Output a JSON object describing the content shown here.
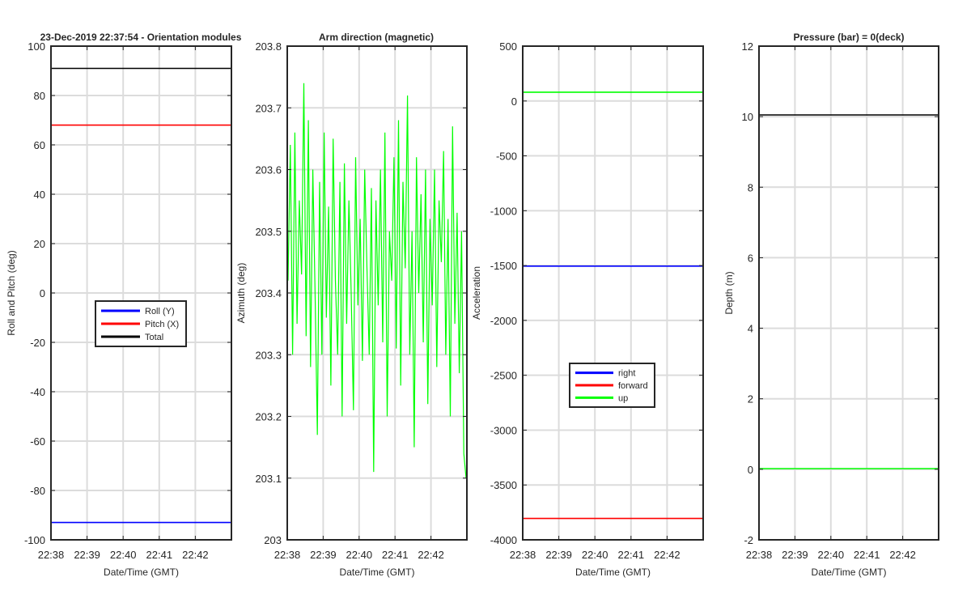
{
  "chart_data": [
    {
      "type": "line",
      "title": "23-Dec-2019 22:37:54 - Orientation modules",
      "xlabel": "Date/Time (GMT)",
      "ylabel": "Roll and Pitch (deg)",
      "xlim": [
        "22:38",
        "22:43"
      ],
      "xticks": [
        "22:38",
        "22:39",
        "22:40",
        "22:41",
        "22:42"
      ],
      "ylim": [
        -100,
        100
      ],
      "yticks": [
        -100,
        -80,
        -60,
        -40,
        -20,
        0,
        20,
        40,
        60,
        80,
        100
      ],
      "grid": true,
      "legend": "center",
      "series": [
        {
          "name": "Roll (Y)",
          "color": "#0000ff",
          "values": [
            -93,
            -93
          ]
        },
        {
          "name": "Pitch (X)",
          "color": "#ff0000",
          "values": [
            68,
            68
          ]
        },
        {
          "name": "Total",
          "color": "#000000",
          "values": [
            91,
            91
          ]
        }
      ]
    },
    {
      "type": "line",
      "title": "Arm direction (magnetic)",
      "xlabel": "Date/Time (GMT)",
      "ylabel": "Azimuth (deg)",
      "xlim": [
        "22:38",
        "22:43"
      ],
      "xticks": [
        "22:38",
        "22:39",
        "22:40",
        "22:41",
        "22:42"
      ],
      "ylim": [
        203,
        203.8
      ],
      "yticks": [
        203,
        203.1,
        203.2,
        203.3,
        203.4,
        203.5,
        203.6,
        203.7,
        203.8
      ],
      "grid": true,
      "series": [
        {
          "color": "#00ff00",
          "values": [
            203.42,
            203.64,
            203.3,
            203.66,
            203.35,
            203.55,
            203.43,
            203.74,
            203.33,
            203.68,
            203.28,
            203.6,
            203.4,
            203.17,
            203.58,
            203.3,
            203.66,
            203.36,
            203.54,
            203.25,
            203.65,
            203.42,
            203.3,
            203.58,
            203.2,
            203.61,
            203.35,
            203.55,
            203.4,
            203.21,
            203.62,
            203.38,
            203.52,
            203.29,
            203.6,
            203.44,
            203.3,
            203.57,
            203.11,
            203.55,
            203.38,
            203.6,
            203.32,
            203.66,
            203.2,
            203.5,
            203.42,
            203.62,
            203.31,
            203.68,
            203.25,
            203.58,
            203.44,
            203.72,
            203.3,
            203.5,
            203.15,
            203.62,
            203.4,
            203.56,
            203.32,
            203.6,
            203.22,
            203.52,
            203.38,
            203.6,
            203.28,
            203.55,
            203.45,
            203.63,
            203.3,
            203.52,
            203.2,
            203.67,
            203.35,
            203.53,
            203.27,
            203.5,
            203.14,
            203.1
          ]
        }
      ]
    },
    {
      "type": "line",
      "xlabel": "Date/Time (GMT)",
      "ylabel": "Acceleration",
      "xlim": [
        "22:38",
        "22:43"
      ],
      "xticks": [
        "22:38",
        "22:39",
        "22:40",
        "22:41",
        "22:42"
      ],
      "ylim": [
        -4000,
        500
      ],
      "yticks": [
        -4000,
        -3500,
        -3000,
        -2500,
        -2000,
        -1500,
        -1000,
        -500,
        0,
        500
      ],
      "grid": true,
      "legend": "lower-center",
      "series": [
        {
          "name": "right",
          "color": "#0000ff",
          "values": [
            -1505,
            -1505
          ]
        },
        {
          "name": "forward",
          "color": "#ff0000",
          "values": [
            -3805,
            -3805
          ]
        },
        {
          "name": "up",
          "color": "#00ff00",
          "values": [
            80,
            80
          ]
        }
      ]
    },
    {
      "type": "line",
      "title": "Pressure (bar) = 0(deck)",
      "xlabel": "Date/Time (GMT)",
      "ylabel": "Depth (m)",
      "xlim": [
        "22:38",
        "22:43"
      ],
      "xticks": [
        "22:38",
        "22:39",
        "22:40",
        "22:41",
        "22:42"
      ],
      "ylim": [
        -2,
        12
      ],
      "yticks": [
        -2,
        0,
        2,
        4,
        6,
        8,
        10,
        12
      ],
      "grid": true,
      "series": [
        {
          "color": "#000000",
          "values": [
            10.05,
            10.05
          ]
        },
        {
          "color": "#00ff00",
          "values": [
            0.02,
            0.02
          ]
        }
      ]
    }
  ]
}
